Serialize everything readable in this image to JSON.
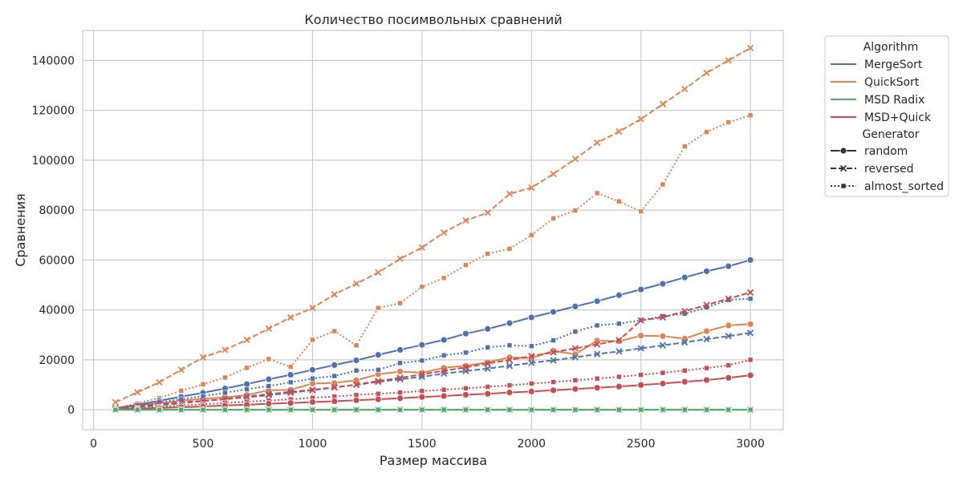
{
  "chart_data": {
    "type": "line",
    "title": "Количество посимвольных сравнений",
    "xlabel": "Размер массива",
    "ylabel": "Сравнения",
    "xlim": [
      -50,
      3150
    ],
    "ylim": [
      -8000,
      152000
    ],
    "x_ticks": [
      0,
      500,
      1000,
      1500,
      2000,
      2500,
      3000
    ],
    "y_ticks": [
      0,
      20000,
      40000,
      60000,
      80000,
      100000,
      120000,
      140000
    ],
    "grid": true,
    "legend_placement": "outside-top-right",
    "x": [
      100,
      200,
      300,
      400,
      500,
      600,
      700,
      800,
      900,
      1000,
      1100,
      1200,
      1300,
      1400,
      1500,
      1600,
      1700,
      1800,
      1900,
      2000,
      2100,
      2200,
      2300,
      2400,
      2500,
      2600,
      2700,
      2800,
      2900,
      3000
    ],
    "legend": {
      "algorithm_title": "Algorithm",
      "generator_title": "Generator",
      "algorithms": [
        {
          "name": "MergeSort",
          "color": "#4c72b0"
        },
        {
          "name": "QuickSort",
          "color": "#dd8452"
        },
        {
          "name": "MSD Radix",
          "color": "#55a868"
        },
        {
          "name": "MSD+Quick",
          "color": "#c44e52"
        }
      ],
      "generators": [
        {
          "name": "random",
          "dash": "solid",
          "marker": "circle"
        },
        {
          "name": "reversed",
          "dash": "dashed",
          "marker": "x"
        },
        {
          "name": "almost_sorted",
          "dash": "dotted",
          "marker": "square"
        }
      ]
    },
    "series": [
      {
        "algorithm": "QuickSort",
        "generator": "reversed",
        "values": [
          3000,
          7000,
          11000,
          16000,
          21000,
          24000,
          28000,
          32500,
          37000,
          40800,
          46200,
          50500,
          55000,
          60500,
          65000,
          71000,
          75800,
          79000,
          86500,
          89000,
          94500,
          100500,
          107000,
          111500,
          116500,
          122500,
          128500,
          135000,
          140000,
          145000
        ]
      },
      {
        "algorithm": "QuickSort",
        "generator": "almost_sorted",
        "values": [
          500,
          2600,
          4700,
          7600,
          10200,
          12900,
          16800,
          20300,
          17200,
          28000,
          31500,
          25800,
          40800,
          42700,
          49300,
          52800,
          58000,
          62500,
          64500,
          70000,
          76700,
          79800,
          86800,
          83500,
          79500,
          90300,
          105500,
          111300,
          115200,
          118000
        ]
      },
      {
        "algorithm": "QuickSort",
        "generator": "random",
        "values": [
          400,
          1800,
          2500,
          3600,
          4400,
          4900,
          5900,
          7800,
          8000,
          10500,
          10700,
          11800,
          14200,
          15300,
          14800,
          16800,
          17600,
          19000,
          21000,
          20700,
          23600,
          22200,
          27700,
          27400,
          29700,
          29500,
          28500,
          31500,
          33800,
          34300
        ]
      },
      {
        "algorithm": "MergeSort",
        "generator": "random",
        "values": [
          600,
          2000,
          3600,
          5200,
          6800,
          8500,
          10300,
          12200,
          14000,
          16000,
          17900,
          19800,
          22000,
          24000,
          26000,
          28000,
          30500,
          32400,
          34700,
          37000,
          39200,
          41400,
          43500,
          45900,
          48200,
          50500,
          53000,
          55500,
          57500,
          60000
        ]
      },
      {
        "algorithm": "MergeSort",
        "generator": "reversed",
        "values": [
          300,
          1000,
          1800,
          2600,
          3500,
          4300,
          5300,
          6200,
          7200,
          8000,
          9000,
          10000,
          11200,
          12200,
          13200,
          14500,
          15500,
          16500,
          17600,
          18800,
          19800,
          21000,
          22300,
          23400,
          24600,
          25800,
          27000,
          28300,
          29500,
          30800
        ]
      },
      {
        "algorithm": "MergeSort",
        "generator": "almost_sorted",
        "values": [
          500,
          1800,
          3000,
          4200,
          5400,
          6800,
          8200,
          9500,
          11000,
          12500,
          13500,
          15700,
          16000,
          18700,
          19700,
          21800,
          22900,
          25000,
          25800,
          25500,
          27800,
          31300,
          33800,
          34500,
          35900,
          37500,
          38500,
          41000,
          44000,
          44500
        ]
      },
      {
        "algorithm": "MSD+Quick",
        "generator": "reversed",
        "values": [
          600,
          1500,
          2300,
          3000,
          3500,
          4200,
          5000,
          5800,
          6800,
          7800,
          8900,
          10100,
          11500,
          12800,
          14200,
          15600,
          17000,
          18500,
          20000,
          21500,
          23000,
          24600,
          26200,
          27900,
          35800,
          37000,
          39500,
          42000,
          44500,
          47000
        ]
      },
      {
        "algorithm": "MSD+Quick",
        "generator": "almost_sorted",
        "values": [
          200,
          700,
          1200,
          1700,
          2200,
          2700,
          3200,
          3700,
          4200,
          4800,
          5300,
          5900,
          6400,
          6900,
          7500,
          8000,
          8600,
          9200,
          9800,
          10500,
          11100,
          11800,
          12500,
          13200,
          14000,
          14800,
          15700,
          16700,
          17800,
          20000
        ]
      },
      {
        "algorithm": "MSD+Quick",
        "generator": "random",
        "values": [
          100,
          400,
          700,
          1000,
          1300,
          1700,
          2000,
          2400,
          2700,
          3100,
          3400,
          3800,
          4200,
          4600,
          5100,
          5500,
          6000,
          6400,
          6900,
          7300,
          7800,
          8300,
          8800,
          9300,
          9900,
          10500,
          11200,
          11900,
          12800,
          13800
        ]
      },
      {
        "algorithm": "MSD Radix",
        "generator": "random",
        "values": [
          0,
          0,
          0,
          0,
          0,
          0,
          0,
          0,
          0,
          0,
          0,
          0,
          0,
          0,
          0,
          0,
          0,
          0,
          0,
          0,
          0,
          0,
          0,
          0,
          0,
          0,
          0,
          0,
          0,
          0
        ]
      },
      {
        "algorithm": "MSD Radix",
        "generator": "reversed",
        "values": [
          0,
          0,
          0,
          0,
          0,
          0,
          0,
          0,
          0,
          0,
          0,
          0,
          0,
          0,
          0,
          0,
          0,
          0,
          0,
          0,
          0,
          0,
          0,
          0,
          0,
          0,
          0,
          0,
          0,
          0
        ]
      },
      {
        "algorithm": "MSD Radix",
        "generator": "almost_sorted",
        "values": [
          0,
          0,
          0,
          0,
          0,
          0,
          0,
          0,
          0,
          0,
          0,
          0,
          0,
          0,
          0,
          0,
          0,
          0,
          0,
          0,
          0,
          0,
          0,
          0,
          0,
          0,
          0,
          0,
          0,
          0
        ]
      }
    ]
  }
}
